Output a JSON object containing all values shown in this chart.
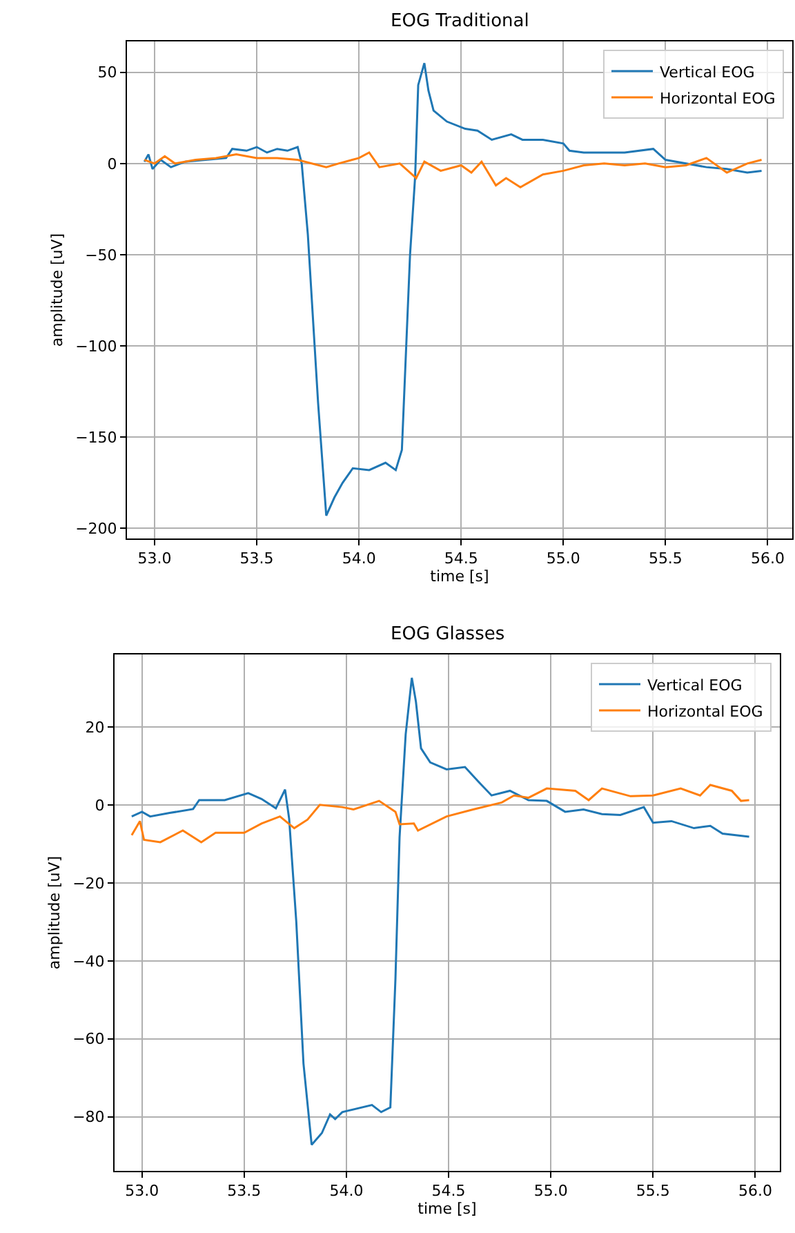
{
  "chart_data": [
    {
      "type": "line",
      "title": "EOG Traditional",
      "xlabel": "time [s]",
      "ylabel": "amplitude [uV]",
      "grid": true,
      "legend": "top right",
      "xlim": [
        52.865,
        56.12
      ],
      "ylim": [
        -205.5,
        66.9
      ],
      "xticks": [
        {
          "value": 53,
          "label": "53.0"
        },
        53.5,
        {
          "value": 54,
          "label": "54.0"
        },
        54.5,
        {
          "value": 55,
          "label": "55.0"
        },
        55.5,
        {
          "value": 56,
          "label": "56.0"
        }
      ],
      "yticks": [
        -200,
        -150,
        -100,
        -50,
        0,
        50
      ],
      "series": [
        {
          "name": "Vertical EOG",
          "color": "#1f77b4",
          "x": [
            52.95,
            52.97,
            52.99,
            53.03,
            53.08,
            53.15,
            53.25,
            53.35,
            53.38,
            53.45,
            53.5,
            53.55,
            53.6,
            53.65,
            53.7,
            53.72,
            53.75,
            53.8,
            53.84,
            53.88,
            53.92,
            53.97,
            54.05,
            54.13,
            54.18,
            54.21,
            54.25,
            54.275,
            54.29,
            54.32,
            54.34,
            54.365,
            54.43,
            54.52,
            54.58,
            54.65,
            54.745,
            54.8,
            54.9,
            55.0,
            55.03,
            55.1,
            55.2,
            55.3,
            55.44,
            55.5,
            55.6,
            55.7,
            55.8,
            55.9,
            55.97
          ],
          "values": [
            1,
            5,
            -3,
            2,
            -2,
            1,
            2,
            3,
            8,
            7,
            9,
            6,
            8,
            7,
            9,
            0,
            -39,
            -131,
            -193,
            -183,
            -175,
            -167,
            -168,
            -164,
            -168,
            -157,
            -50,
            -7,
            43,
            55,
            40,
            29,
            23,
            19,
            18,
            13,
            16,
            13,
            13,
            11,
            7,
            6,
            6,
            6,
            8,
            2,
            0,
            -2,
            -3,
            -5,
            -4
          ]
        },
        {
          "name": "Horizontal EOG",
          "color": "#ff7f0e",
          "x": [
            52.95,
            53.0,
            53.05,
            53.1,
            53.2,
            53.3,
            53.4,
            53.5,
            53.6,
            53.7,
            53.84,
            53.9,
            54.0,
            54.05,
            54.1,
            54.2,
            54.28,
            54.32,
            54.4,
            54.5,
            54.55,
            54.6,
            54.67,
            54.72,
            54.79,
            54.9,
            55.0,
            55.1,
            55.2,
            55.3,
            55.4,
            55.5,
            55.6,
            55.7,
            55.8,
            55.9,
            55.97
          ],
          "values": [
            2,
            0,
            4,
            0,
            2,
            3,
            5,
            3,
            3,
            2,
            -2,
            0,
            3,
            6,
            -2,
            0,
            -8,
            1,
            -4,
            -1,
            -5,
            1,
            -12,
            -8,
            -13,
            -6,
            -4,
            -1,
            0,
            -1,
            0,
            -2,
            -1,
            3,
            -5,
            0,
            2
          ]
        }
      ]
    },
    {
      "type": "line",
      "title": "EOG Glasses",
      "xlabel": "time [s]",
      "ylabel": "amplitude [uV]",
      "grid": true,
      "legend": "top right",
      "xlim": [
        52.866,
        56.12
      ],
      "ylim": [
        -93.9,
        38.7
      ],
      "xticks": [
        {
          "value": 53,
          "label": "53.0"
        },
        53.5,
        {
          "value": 54,
          "label": "54.0"
        },
        54.5,
        {
          "value": 55,
          "label": "55.0"
        },
        55.5,
        {
          "value": 56,
          "label": "56.0"
        }
      ],
      "yticks": [
        -80,
        -60,
        -40,
        -20,
        0,
        20
      ],
      "series": [
        {
          "name": "Vertical EOG",
          "color": "#1f77b4",
          "x": [
            52.95,
            53.0,
            53.04,
            53.135,
            53.25,
            53.28,
            53.405,
            53.52,
            53.585,
            53.655,
            53.7,
            53.72,
            53.755,
            53.79,
            53.83,
            53.88,
            53.92,
            53.945,
            53.98,
            54.125,
            54.17,
            54.215,
            54.24,
            54.26,
            54.29,
            54.32,
            54.34,
            54.365,
            54.41,
            54.49,
            54.58,
            54.645,
            54.71,
            54.8,
            54.89,
            54.98,
            55.07,
            55.16,
            55.25,
            55.34,
            55.455,
            55.5,
            55.59,
            55.7,
            55.78,
            55.84,
            55.97
          ],
          "values": [
            -2.9,
            -1.7,
            -2.9,
            -2,
            -1,
            1.3,
            1.3,
            3.1,
            1.6,
            -0.8,
            4,
            -3.5,
            -30,
            -66.3,
            -87.2,
            -84.2,
            -79.4,
            -80.6,
            -78.8,
            -77,
            -78.8,
            -77.6,
            -44.5,
            -8.3,
            18.2,
            32.7,
            26.6,
            14.6,
            11,
            9.2,
            9.8,
            6.1,
            2.5,
            3.7,
            1.3,
            1.1,
            -1.7,
            -1.1,
            -2.3,
            -2.5,
            -0.5,
            -4.5,
            -4.1,
            -5.9,
            -5.3,
            -7.3,
            -8.1
          ]
        },
        {
          "name": "Horizontal EOG",
          "color": "#ff7f0e",
          "x": [
            52.95,
            52.99,
            53.01,
            53.09,
            53.2,
            53.29,
            53.36,
            53.5,
            53.585,
            53.675,
            53.745,
            53.81,
            53.87,
            53.98,
            54.035,
            54.16,
            54.24,
            54.26,
            54.33,
            54.35,
            54.49,
            54.62,
            54.76,
            54.82,
            54.89,
            54.98,
            55.12,
            55.185,
            55.25,
            55.39,
            55.5,
            55.635,
            55.73,
            55.78,
            55.885,
            55.93,
            55.97
          ],
          "values": [
            -7.7,
            -4.1,
            -8.9,
            -9.5,
            -6.5,
            -9.5,
            -7.1,
            -7.1,
            -4.7,
            -2.9,
            -5.9,
            -3.7,
            0.1,
            -0.5,
            -1.1,
            1.1,
            -1.7,
            -4.9,
            -4.7,
            -6.5,
            -2.9,
            -1.1,
            0.7,
            2.5,
            1.9,
            4.3,
            3.7,
            1.3,
            4.3,
            2.3,
            2.5,
            4.3,
            2.5,
            5.2,
            3.7,
            1.1,
            1.3
          ]
        }
      ]
    }
  ]
}
